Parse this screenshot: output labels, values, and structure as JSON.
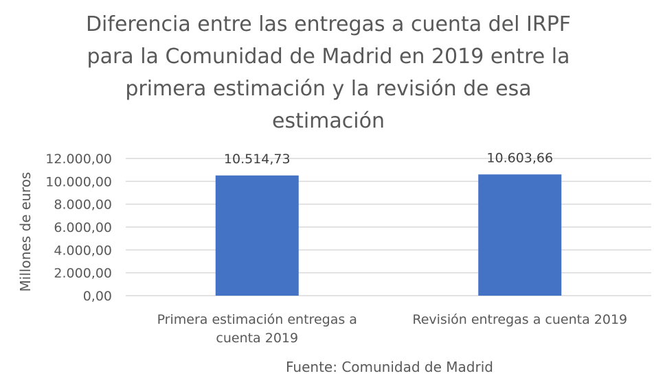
{
  "chart_data": {
    "type": "bar",
    "title_lines": [
      "Diferencia entre las entregas a cuenta del IRPF",
      "para la Comunidad de Madrid en 2019 entre la",
      "primera estimación y la revisión de esa",
      "estimación"
    ],
    "ylabel": "Millones de euros",
    "categories": [
      [
        "Primera estimación entregas a",
        "cuenta 2019"
      ],
      [
        "Revisión entregas a cuenta 2019"
      ]
    ],
    "values": [
      10514.73,
      10603.66
    ],
    "value_labels": [
      "10.514,73",
      "10.603,66"
    ],
    "ylim": [
      0,
      12000
    ],
    "yticks": [
      0,
      2000,
      4000,
      6000,
      8000,
      10000,
      12000
    ],
    "ytick_labels": [
      "0,00",
      "2.000,00",
      "4.000,00",
      "6.000,00",
      "8.000,00",
      "10.000,00",
      "12.000,00"
    ],
    "grid": true,
    "legend": "none",
    "bar_color": "#4472C4",
    "grid_color": "#D9D9D9",
    "source": "Fuente: Comunidad de Madrid"
  }
}
